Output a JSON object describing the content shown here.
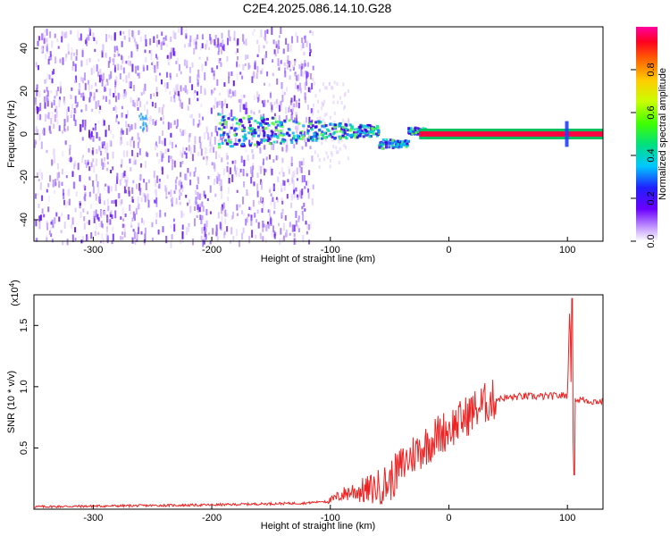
{
  "title": "C2E4.2025.086.14.10.G28",
  "chart_data": [
    {
      "type": "heatmap",
      "xlabel": "Height of straight line (km)",
      "ylabel": "Frequency (Hz)",
      "xlim": [
        -350,
        130
      ],
      "ylim": [
        -50,
        50
      ],
      "xticks": [
        "-300",
        "-200",
        "-100",
        "0",
        "100"
      ],
      "yticks": [
        "40",
        "20",
        "0",
        "-20",
        "-40"
      ],
      "colorbar": {
        "label": "Normalized spectral amplitude",
        "range": [
          0,
          1
        ],
        "ticks": [
          "0.0",
          "0.2",
          "0.4",
          "0.6",
          "0.8"
        ]
      }
    },
    {
      "type": "line",
      "xlabel": "Height of straight line (km)",
      "ylabel": "SNR (10 * v/v)",
      "scale_label": "(x10",
      "scale_exp": "4",
      "xlim": [
        -350,
        130
      ],
      "ylim": [
        0,
        1.75
      ],
      "xticks": [
        "-300",
        "-200",
        "-100",
        "0",
        "100"
      ],
      "yticks": [
        "0.5",
        "1.0",
        "1.5"
      ],
      "color": "#ee2222",
      "series": [
        {
          "x": [
            -350,
            -300,
            -250,
            -200,
            -150,
            -120,
            -100,
            -90,
            -80,
            -70,
            -60,
            -50,
            -40,
            -30,
            -20,
            -10,
            0,
            10,
            20,
            30,
            40,
            50,
            60,
            80,
            100,
            102,
            104,
            106,
            108,
            110,
            120,
            130
          ],
          "y": [
            0.02,
            0.025,
            0.03,
            0.035,
            0.045,
            0.05,
            0.07,
            0.12,
            0.15,
            0.15,
            0.18,
            0.22,
            0.35,
            0.45,
            0.52,
            0.6,
            0.66,
            0.72,
            0.8,
            0.86,
            0.9,
            0.91,
            0.92,
            0.92,
            0.93,
            1.7,
            0.32,
            0.95,
            0.88,
            0.9,
            0.88,
            0.88
          ]
        }
      ]
    }
  ]
}
